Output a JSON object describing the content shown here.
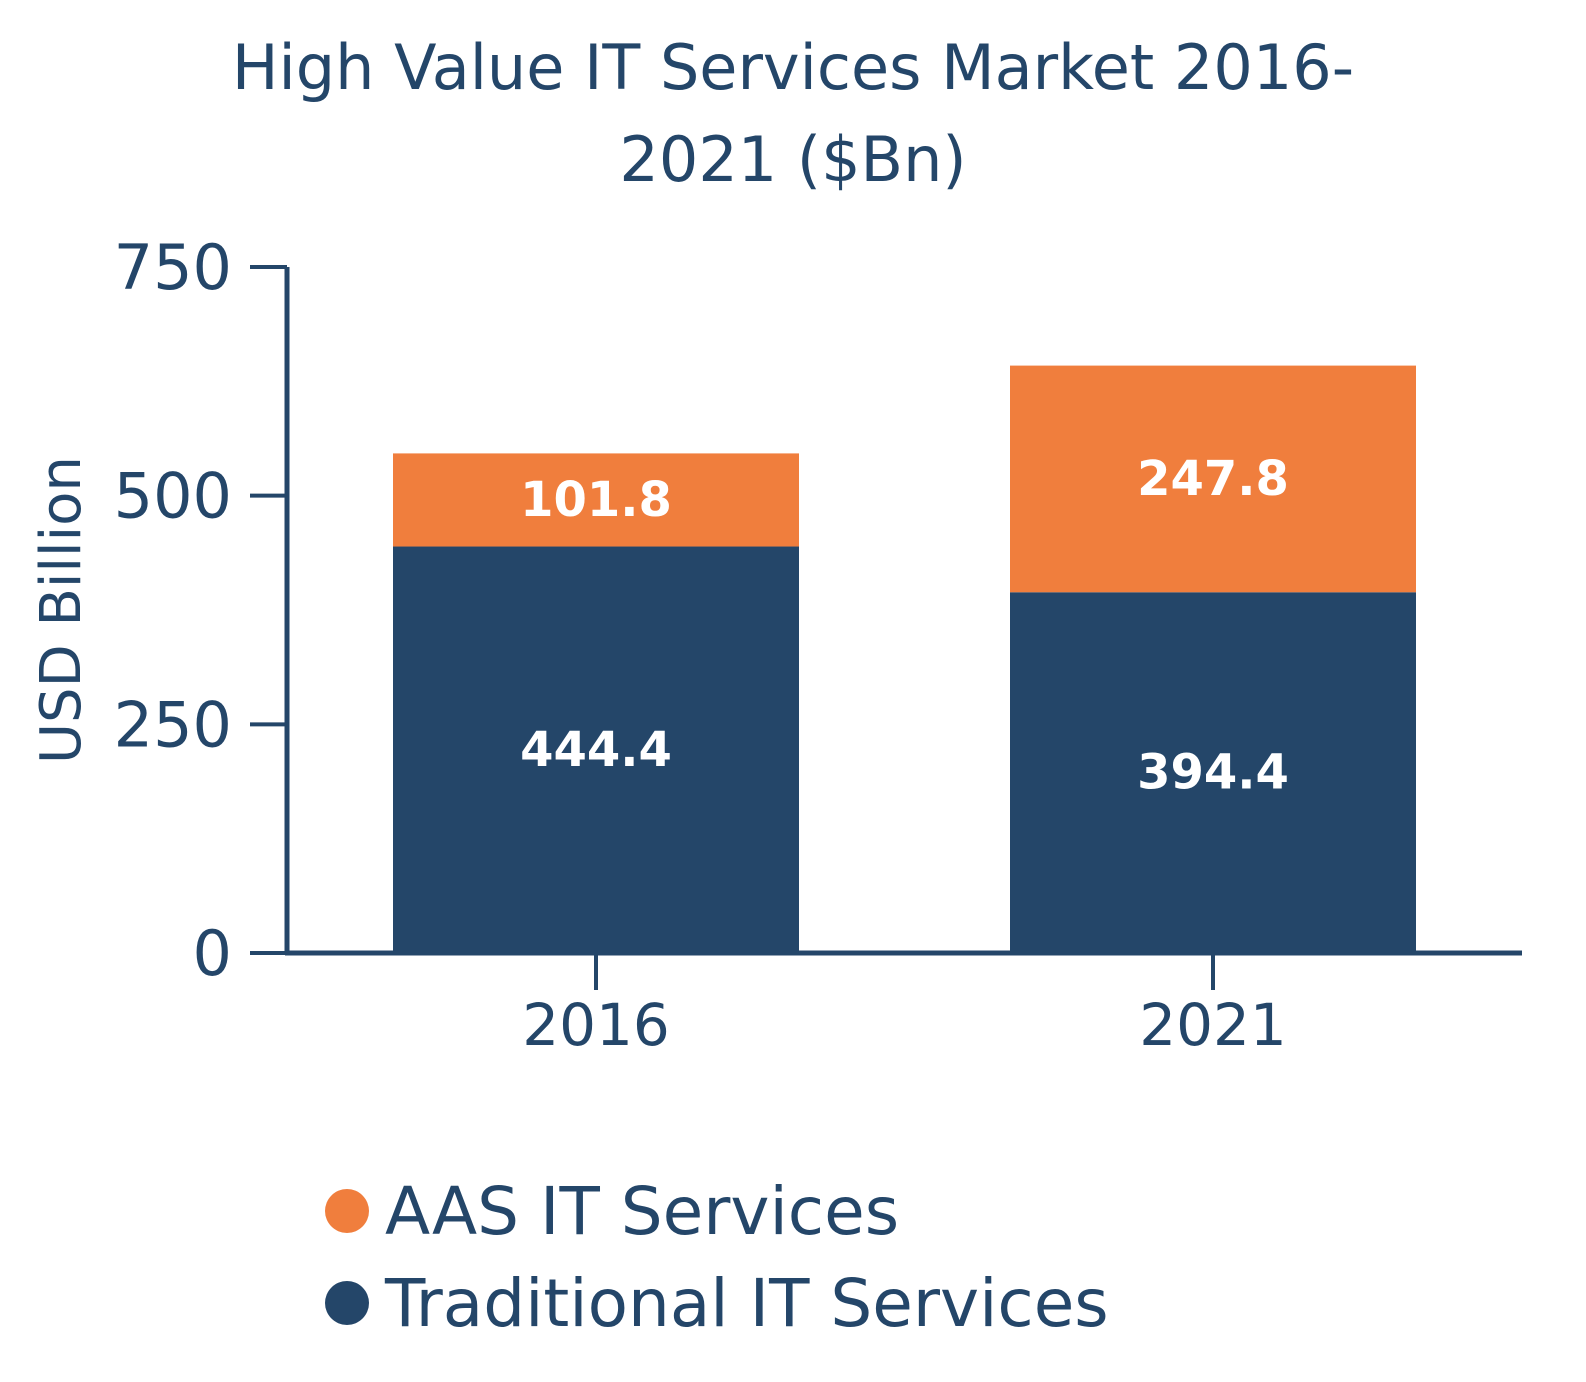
{
  "chart_data": {
    "type": "bar",
    "stacked": true,
    "title_lines": [
      "High Value IT Services Market 2016-",
      "2021 ($Bn)"
    ],
    "ylabel": "USD Billion",
    "xlabel": "",
    "ylim": [
      0,
      750
    ],
    "yticks": [
      "0",
      "250",
      "500",
      "750"
    ],
    "ytick_values": [
      0,
      250,
      500,
      750
    ],
    "categories": [
      "2016",
      "2021"
    ],
    "series": [
      {
        "name": "Traditional IT Services",
        "color": "#244669",
        "values": [
          444.4,
          394.4
        ],
        "labels": [
          "444.4",
          "394.4"
        ]
      },
      {
        "name": "AAS IT Services",
        "color": "#f07e3d",
        "values": [
          101.8,
          247.8
        ],
        "labels": [
          "101.8",
          "247.8"
        ]
      }
    ],
    "grid": false,
    "legend_position": "bottom"
  },
  "legend": {
    "items": [
      {
        "label": "AAS IT Services",
        "color": "#f07e3d"
      },
      {
        "label": "Traditional IT Services",
        "color": "#244669"
      }
    ]
  }
}
